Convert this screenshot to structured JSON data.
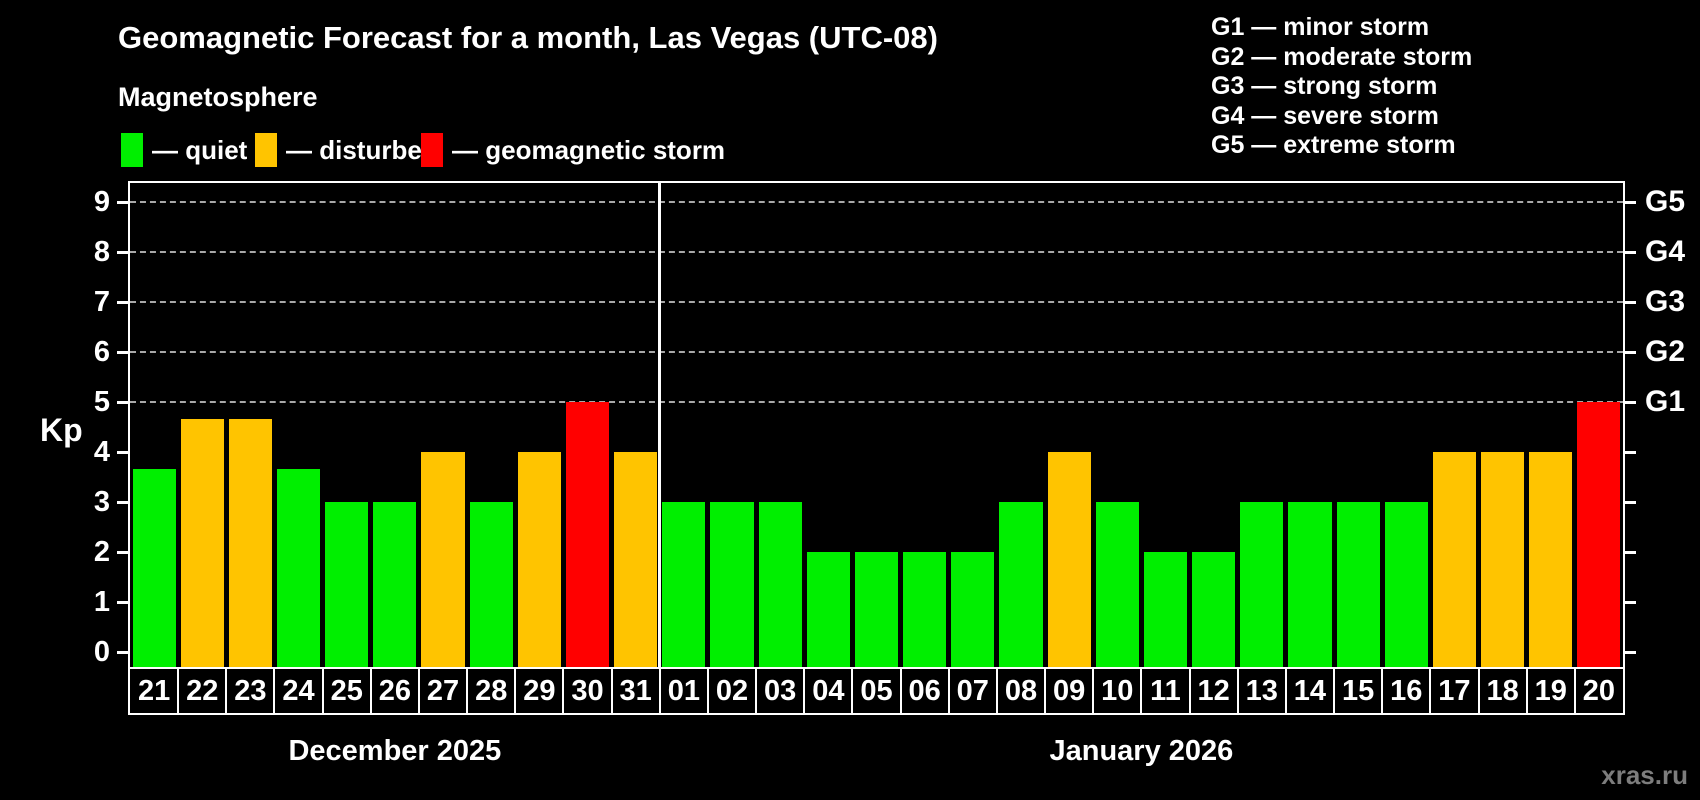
{
  "header": {
    "title": "Geomagnetic Forecast for a month, Las Vegas (UTC-08)",
    "subtitle": "Magnetosphere"
  },
  "legend": {
    "items": [
      {
        "id": "quiet",
        "swatch_color": "#00ef00",
        "label": "— quiet"
      },
      {
        "id": "disturbed",
        "swatch_color": "#ffc400",
        "label": "— disturbed"
      },
      {
        "id": "storm",
        "swatch_color": "#ff0000",
        "label": "— geomagnetic storm"
      }
    ]
  },
  "g_scale_legend": {
    "lines": [
      "G1 — minor storm",
      "G2 — moderate storm",
      "G3 — strong storm",
      "G4 — severe storm",
      "G5 — extreme storm"
    ]
  },
  "watermark": "xras.ru",
  "chart_data": {
    "type": "bar",
    "title": "Geomagnetic Forecast for a month, Las Vegas (UTC-08)",
    "ylabel": "Kp",
    "ylim": [
      0,
      9
    ],
    "yticks": [
      0,
      1,
      2,
      3,
      4,
      5,
      6,
      7,
      8,
      9
    ],
    "gridlines_at": [
      5,
      6,
      7,
      8,
      9
    ],
    "grid_style": "dashed horizontal lines at Kp 5-9 only",
    "legend_position": "top-left",
    "right_axis_labels": [
      {
        "kp": 5,
        "label": "G1"
      },
      {
        "kp": 6,
        "label": "G2"
      },
      {
        "kp": 7,
        "label": "G3"
      },
      {
        "kp": 8,
        "label": "G4"
      },
      {
        "kp": 9,
        "label": "G5"
      }
    ],
    "colors": {
      "quiet": "#00ef00",
      "disturbed": "#ffc400",
      "storm": "#ff0000"
    },
    "months": [
      {
        "label": "December 2025",
        "days": [
          {
            "date": "21",
            "kp": 3.67,
            "level": "quiet"
          },
          {
            "date": "22",
            "kp": 4.67,
            "level": "disturbed"
          },
          {
            "date": "23",
            "kp": 4.67,
            "level": "disturbed"
          },
          {
            "date": "24",
            "kp": 3.67,
            "level": "quiet"
          },
          {
            "date": "25",
            "kp": 3,
            "level": "quiet"
          },
          {
            "date": "26",
            "kp": 3,
            "level": "quiet"
          },
          {
            "date": "27",
            "kp": 4,
            "level": "disturbed"
          },
          {
            "date": "28",
            "kp": 3,
            "level": "quiet"
          },
          {
            "date": "29",
            "kp": 4,
            "level": "disturbed"
          },
          {
            "date": "30",
            "kp": 5,
            "level": "storm"
          },
          {
            "date": "31",
            "kp": 4,
            "level": "disturbed"
          }
        ]
      },
      {
        "label": "January 2026",
        "days": [
          {
            "date": "01",
            "kp": 3,
            "level": "quiet"
          },
          {
            "date": "02",
            "kp": 3,
            "level": "quiet"
          },
          {
            "date": "03",
            "kp": 3,
            "level": "quiet"
          },
          {
            "date": "04",
            "kp": 2,
            "level": "quiet"
          },
          {
            "date": "05",
            "kp": 2,
            "level": "quiet"
          },
          {
            "date": "06",
            "kp": 2,
            "level": "quiet"
          },
          {
            "date": "07",
            "kp": 2,
            "level": "quiet"
          },
          {
            "date": "08",
            "kp": 3,
            "level": "quiet"
          },
          {
            "date": "09",
            "kp": 4,
            "level": "disturbed"
          },
          {
            "date": "10",
            "kp": 3,
            "level": "quiet"
          },
          {
            "date": "11",
            "kp": 2,
            "level": "quiet"
          },
          {
            "date": "12",
            "kp": 2,
            "level": "quiet"
          },
          {
            "date": "13",
            "kp": 3,
            "level": "quiet"
          },
          {
            "date": "14",
            "kp": 3,
            "level": "quiet"
          },
          {
            "date": "15",
            "kp": 3,
            "level": "quiet"
          },
          {
            "date": "16",
            "kp": 3,
            "level": "quiet"
          },
          {
            "date": "17",
            "kp": 4,
            "level": "disturbed"
          },
          {
            "date": "18",
            "kp": 4,
            "level": "disturbed"
          },
          {
            "date": "19",
            "kp": 4,
            "level": "disturbed"
          },
          {
            "date": "20",
            "kp": 5,
            "level": "storm"
          }
        ]
      }
    ]
  }
}
